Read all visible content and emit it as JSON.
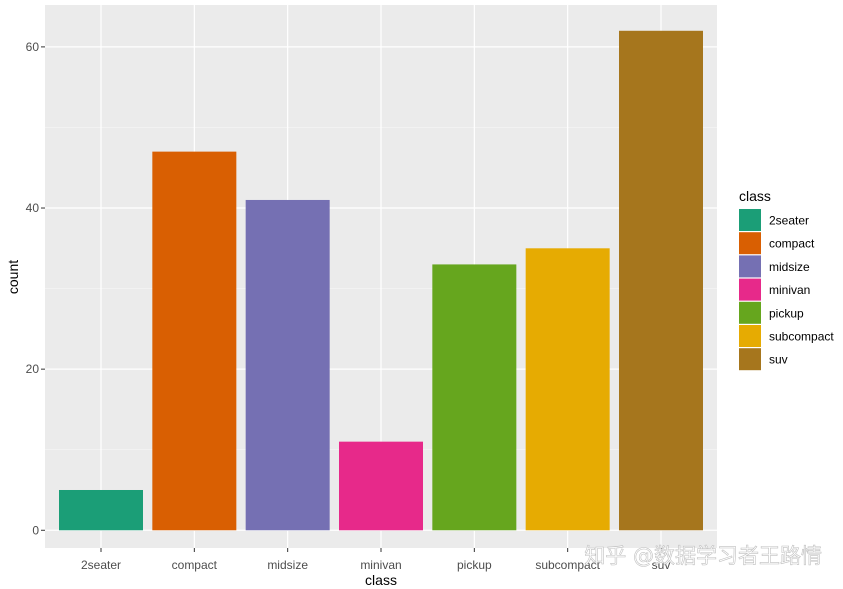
{
  "chart_data": {
    "type": "bar",
    "categories": [
      "2seater",
      "compact",
      "midsize",
      "minivan",
      "pickup",
      "subcompact",
      "suv"
    ],
    "values": [
      5,
      47,
      41,
      11,
      33,
      35,
      62
    ],
    "colors": [
      "#1b9e77",
      "#d95f02",
      "#7570b3",
      "#e7298a",
      "#66a61e",
      "#e6ab02",
      "#a6761d"
    ],
    "xlabel": "class",
    "ylabel": "count",
    "yticks": [
      0,
      20,
      40,
      60
    ],
    "ylim": [
      -2.2,
      65.2
    ],
    "grid": true,
    "panel_background": "#ebebeb",
    "legend": {
      "title": "class",
      "position": "right",
      "entries": [
        "2seater",
        "compact",
        "midsize",
        "minivan",
        "pickup",
        "subcompact",
        "suv"
      ]
    }
  },
  "watermark": "知乎 @数据学习者王路情"
}
